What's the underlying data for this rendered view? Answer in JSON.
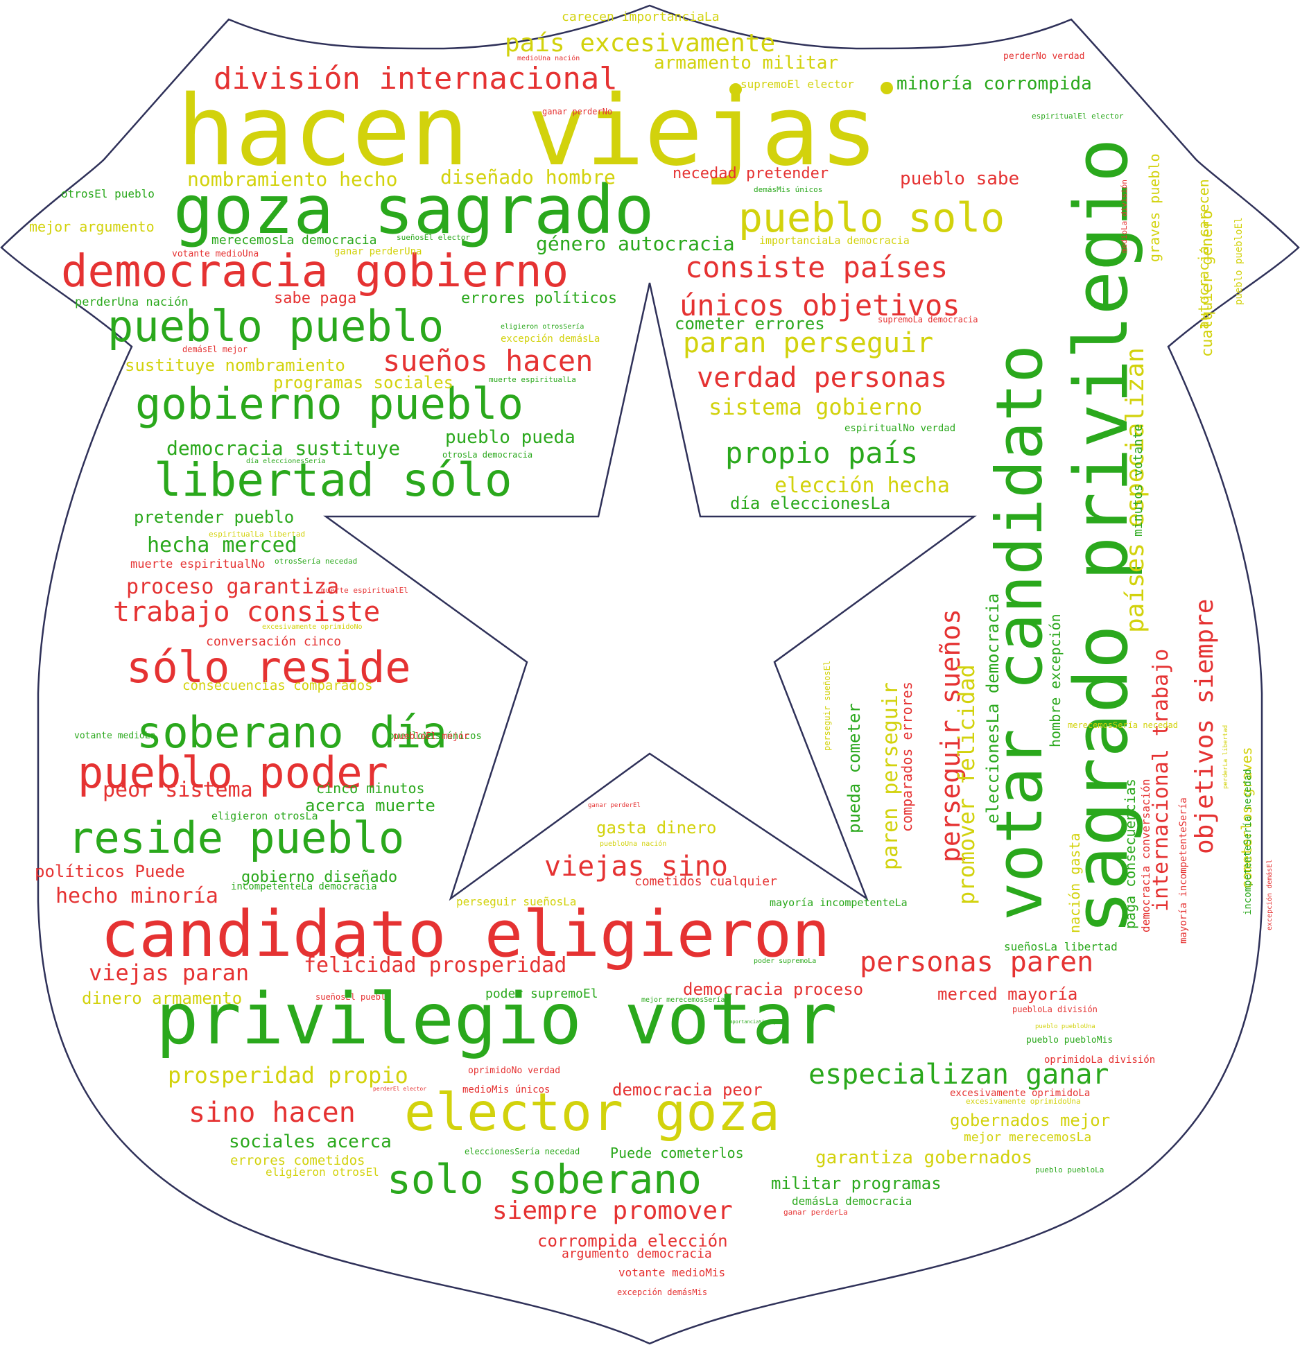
{
  "palette": {
    "red": "#e53232",
    "green": "#2aa81c",
    "yellow": "#d2d20c",
    "outline": "#2f3159"
  },
  "words": [
    {
      "text": "hacen viejas",
      "c": "yellow"
    },
    {
      "text": "goza sagrado",
      "c": "green"
    },
    {
      "text": "pueblo solo",
      "c": "yellow"
    },
    {
      "text": "democracia gobierno",
      "c": "red"
    },
    {
      "text": "pueblo pueblo",
      "c": "green"
    },
    {
      "text": "gobierno pueblo",
      "c": "green"
    },
    {
      "text": "libertad sólo",
      "c": "green"
    },
    {
      "text": "división internacional",
      "c": "red"
    },
    {
      "text": "país excesivamente",
      "c": "yellow"
    },
    {
      "text": "armamento militar",
      "c": "yellow"
    },
    {
      "text": "carecen importanciaLa",
      "c": "yellow"
    },
    {
      "text": "minoría corrompida",
      "c": "green"
    },
    {
      "text": "supremoEl elector",
      "c": "yellow"
    },
    {
      "text": "medioUna nación",
      "c": "red"
    },
    {
      "text": "perderNo verdad",
      "c": "red"
    },
    {
      "text": "ganar perderNo",
      "c": "red"
    },
    {
      "text": "espiritualEl elector",
      "c": "green"
    },
    {
      "text": "nombramiento hecho",
      "c": "yellow"
    },
    {
      "text": "diseñado hombre",
      "c": "yellow"
    },
    {
      "text": "necedad pretender",
      "c": "red"
    },
    {
      "text": "pueblo sabe",
      "c": "red"
    },
    {
      "text": "demásMis únicos",
      "c": "green"
    },
    {
      "text": "otrosEl pueblo",
      "c": "green"
    },
    {
      "text": "mejor argumento",
      "c": "yellow"
    },
    {
      "text": "merecemosLa democracia",
      "c": "green"
    },
    {
      "text": "sueñosEl elector",
      "c": "green"
    },
    {
      "text": "votante medioUna",
      "c": "red"
    },
    {
      "text": "ganar perderUna",
      "c": "yellow"
    },
    {
      "text": "género autocracia",
      "c": "green"
    },
    {
      "text": "importanciaLa democracia",
      "c": "yellow"
    },
    {
      "text": "consiste países",
      "c": "red"
    },
    {
      "text": "únicos objetivos",
      "c": "red"
    },
    {
      "text": "perderUna nación",
      "c": "green"
    },
    {
      "text": "sabe paga",
      "c": "red"
    },
    {
      "text": "errores políticos",
      "c": "green"
    },
    {
      "text": "eligieron otrosSería",
      "c": "green"
    },
    {
      "text": "cometer errores",
      "c": "green"
    },
    {
      "text": "supremoLa democracia",
      "c": "red"
    },
    {
      "text": "excepción demásLa",
      "c": "yellow"
    },
    {
      "text": "paran perseguir",
      "c": "yellow"
    },
    {
      "text": "demásEl mejor",
      "c": "red"
    },
    {
      "text": "sustituye nombramiento",
      "c": "yellow"
    },
    {
      "text": "sueños hacen",
      "c": "red"
    },
    {
      "text": "programas sociales",
      "c": "yellow"
    },
    {
      "text": "muerte espiritualLa",
      "c": "green"
    },
    {
      "text": "verdad personas",
      "c": "red"
    },
    {
      "text": "sistema gobierno",
      "c": "yellow"
    },
    {
      "text": "espiritualNo verdad",
      "c": "green"
    },
    {
      "text": "democracia sustituye",
      "c": "green"
    },
    {
      "text": "pueblo pueda",
      "c": "green"
    },
    {
      "text": "otrosLa democracia",
      "c": "green"
    },
    {
      "text": "día eleccionesSería",
      "c": "green"
    },
    {
      "text": "propio país",
      "c": "green"
    },
    {
      "text": "elección hecha",
      "c": "yellow"
    },
    {
      "text": "día eleccionesLa",
      "c": "green"
    },
    {
      "text": "pretender pueblo",
      "c": "green"
    },
    {
      "text": "espiritualLa libertad",
      "c": "yellow"
    },
    {
      "text": "hecha merced",
      "c": "green"
    },
    {
      "text": "otrosSería necedad",
      "c": "green"
    },
    {
      "text": "muerte espiritualNo",
      "c": "red"
    },
    {
      "text": "proceso garantiza",
      "c": "red"
    },
    {
      "text": "muerte espiritualEl",
      "c": "red"
    },
    {
      "text": "trabajo consiste",
      "c": "red"
    },
    {
      "text": "excesivamente oprimidoNo",
      "c": "yellow"
    },
    {
      "text": "conversación cinco",
      "c": "red"
    },
    {
      "text": "sólo reside",
      "c": "red"
    },
    {
      "text": "consecuencias comparados",
      "c": "yellow"
    },
    {
      "text": "soberano día",
      "c": "green"
    },
    {
      "text": "votante medioLa",
      "c": "green"
    },
    {
      "text": "puebloMis únicos",
      "c": "green"
    },
    {
      "text": "puebloEl mejor",
      "c": "red"
    },
    {
      "text": "pueblo poder",
      "c": "red"
    },
    {
      "text": "cinco minutos",
      "c": "green"
    },
    {
      "text": "peor sistema",
      "c": "red"
    },
    {
      "text": "acerca muerte",
      "c": "green"
    },
    {
      "text": "eligieron otrosLa",
      "c": "green"
    },
    {
      "text": "reside pueblo",
      "c": "green"
    },
    {
      "text": "políticos Puede",
      "c": "red"
    },
    {
      "text": "gobierno diseñado",
      "c": "green"
    },
    {
      "text": "incompetenteLa democracia",
      "c": "green"
    },
    {
      "text": "hecho minoría",
      "c": "red"
    },
    {
      "text": "ganar perderEl",
      "c": "red"
    },
    {
      "text": "gasta dinero",
      "c": "yellow"
    },
    {
      "text": "puebloUna nación",
      "c": "yellow"
    },
    {
      "text": "viejas sino",
      "c": "red"
    },
    {
      "text": "cometidos cualquier",
      "c": "red"
    },
    {
      "text": "perseguir sueñosLa",
      "c": "yellow"
    },
    {
      "text": "mayoría incompetenteLa",
      "c": "green"
    },
    {
      "text": "candidato eligieron",
      "c": "red"
    },
    {
      "text": "personas paren",
      "c": "red"
    },
    {
      "text": "felicidad prosperidad",
      "c": "red"
    },
    {
      "text": "viejas paran",
      "c": "red"
    },
    {
      "text": "dinero armamento",
      "c": "yellow"
    },
    {
      "text": "sueñosEl pueblo",
      "c": "red"
    },
    {
      "text": "poder supremoEl",
      "c": "green"
    },
    {
      "text": "mejor merecemosSería",
      "c": "green"
    },
    {
      "text": "democracia proceso",
      "c": "red"
    },
    {
      "text": "merced mayoría",
      "c": "red"
    },
    {
      "text": "poder supremoLa",
      "c": "green"
    },
    {
      "text": "sueñosLa libertad",
      "c": "green"
    },
    {
      "text": "privilegio votar",
      "c": "green"
    },
    {
      "text": "importanciaSi mejor",
      "c": "green"
    },
    {
      "text": "puebloLa división",
      "c": "red"
    },
    {
      "text": "pueblo puebloUna",
      "c": "yellow"
    },
    {
      "text": "pueblo puebloMis",
      "c": "green"
    },
    {
      "text": "especializan ganar",
      "c": "green"
    },
    {
      "text": "oprimidoLa división",
      "c": "red"
    },
    {
      "text": "prosperidad propio",
      "c": "yellow"
    },
    {
      "text": "oprimidoNo verdad",
      "c": "red"
    },
    {
      "text": "perderEl elector",
      "c": "red"
    },
    {
      "text": "medioMis únicos",
      "c": "red"
    },
    {
      "text": "democracia peor",
      "c": "red"
    },
    {
      "text": "excesivamente oprimidoLa",
      "c": "red"
    },
    {
      "text": "excesivamente oprimidoUna",
      "c": "yellow"
    },
    {
      "text": "elector goza",
      "c": "yellow"
    },
    {
      "text": "sino hacen",
      "c": "red"
    },
    {
      "text": "gobernados mejor",
      "c": "yellow"
    },
    {
      "text": "mejor merecemosLa",
      "c": "yellow"
    },
    {
      "text": "sociales acerca",
      "c": "green"
    },
    {
      "text": "eleccionesSería necedad",
      "c": "green"
    },
    {
      "text": "Puede cometerlos",
      "c": "green"
    },
    {
      "text": "garantiza gobernados",
      "c": "yellow"
    },
    {
      "text": "pueblo puebloLa",
      "c": "green"
    },
    {
      "text": "errores cometidos",
      "c": "yellow"
    },
    {
      "text": "eligieron otrosEl",
      "c": "yellow"
    },
    {
      "text": "solo soberano",
      "c": "green"
    },
    {
      "text": "militar programas",
      "c": "green"
    },
    {
      "text": "demásLa democracia",
      "c": "green"
    },
    {
      "text": "siempre promover",
      "c": "red"
    },
    {
      "text": "ganar perderLa",
      "c": "red"
    },
    {
      "text": "corrompida elección",
      "c": "red"
    },
    {
      "text": "argumento democracia",
      "c": "red"
    },
    {
      "text": "votante medioMis",
      "c": "red"
    },
    {
      "text": "excepción demásMis",
      "c": "red"
    },
    {
      "text": "votar candidato",
      "c": "green"
    },
    {
      "text": "sagrado privilegio",
      "c": "green"
    },
    {
      "text": "países especializan",
      "c": "yellow"
    },
    {
      "text": "internacional trabajo",
      "c": "red"
    },
    {
      "text": "objetivos siempre",
      "c": "red"
    },
    {
      "text": "perseguir sueños",
      "c": "red"
    },
    {
      "text": "promover felicidad",
      "c": "yellow"
    },
    {
      "text": "eleccionesLa democracia",
      "c": "green"
    },
    {
      "text": "hombre excepción",
      "c": "green"
    },
    {
      "text": "nación gasta",
      "c": "yellow"
    },
    {
      "text": "paga consecuencias",
      "c": "green"
    },
    {
      "text": "democracia conversación",
      "c": "red"
    },
    {
      "text": "mayoría incompetenteSería",
      "c": "red"
    },
    {
      "text": "paren perseguir",
      "c": "yellow"
    },
    {
      "text": "comparados errores",
      "c": "red"
    },
    {
      "text": "pueda cometer",
      "c": "green"
    },
    {
      "text": "perseguir sueñosEl",
      "c": "yellow"
    },
    {
      "text": "minutos votante",
      "c": "green"
    },
    {
      "text": "graves pueblo",
      "c": "yellow"
    },
    {
      "text": "cualquier género",
      "c": "yellow"
    },
    {
      "text": "autocracia carecen",
      "c": "yellow"
    },
    {
      "text": "pueblo puebloEl",
      "c": "yellow"
    },
    {
      "text": "medioLa división",
      "c": "red"
    },
    {
      "text": "cometerlos graves",
      "c": "yellow"
    },
    {
      "text": "incompetenteSería necedad",
      "c": "green"
    },
    {
      "text": "excepción demásEl",
      "c": "red"
    },
    {
      "text": "merecemosSería necedad",
      "c": "yellow"
    },
    {
      "text": "perderLa libertad",
      "c": "yellow"
    }
  ]
}
